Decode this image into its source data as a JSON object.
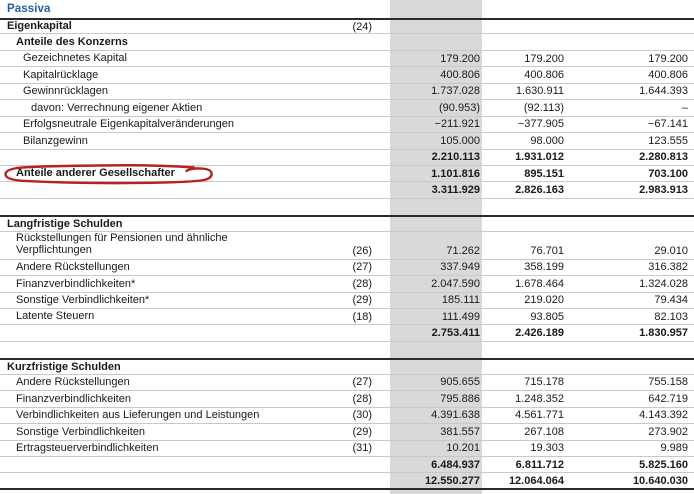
{
  "title": "Passiva",
  "colors": {
    "accent_blue": "#1f5fa6",
    "column_shade": "#d9d9d9",
    "annotation_red": "#b52222"
  },
  "annotation": {
    "type": "handwritten-red-circle",
    "target": "Anteile anderer Gesellschafter"
  },
  "rows": [
    {
      "type": "group",
      "label": "Eigenkapital",
      "note": "(24)",
      "v1": "",
      "v2": "",
      "v3": "",
      "bold": true,
      "indent": 0,
      "rule_top": "dark"
    },
    {
      "type": "group",
      "label": "Anteile des Konzerns",
      "note": "",
      "v1": "",
      "v2": "",
      "v3": "",
      "bold": true,
      "indent": 1
    },
    {
      "type": "item",
      "label": "Gezeichnetes Kapital",
      "note": "",
      "v1": "179.200",
      "v2": "179.200",
      "v3": "179.200",
      "bold": false,
      "indent": 2
    },
    {
      "type": "item",
      "label": "Kapitalrücklage",
      "note": "",
      "v1": "400.806",
      "v2": "400.806",
      "v3": "400.806",
      "bold": false,
      "indent": 2
    },
    {
      "type": "item",
      "label": "Gewinnrücklagen",
      "note": "",
      "v1": "1.737.028",
      "v2": "1.630.911",
      "v3": "1.644.393",
      "bold": false,
      "indent": 2
    },
    {
      "type": "item",
      "label": "davon: Verrechnung eigener Aktien",
      "note": "",
      "v1": "(90.953)",
      "v2": "(92.113)",
      "v3": "–",
      "bold": false,
      "indent": 3
    },
    {
      "type": "item",
      "label": "Erfolgsneutrale Eigenkapitalveränderungen",
      "note": "",
      "v1": "−211.921",
      "v2": "−377.905",
      "v3": "−67.141",
      "bold": false,
      "indent": 2
    },
    {
      "type": "item",
      "label": "Bilanzgewinn",
      "note": "",
      "v1": "105.000",
      "v2": "98.000",
      "v3": "123.555",
      "bold": false,
      "indent": 2
    },
    {
      "type": "subtotal",
      "label": "",
      "note": "",
      "v1": "2.210.113",
      "v2": "1.931.012",
      "v3": "2.280.813",
      "bold": true,
      "indent": 0
    },
    {
      "type": "item",
      "label": "Anteile anderer Gesellschafter",
      "note": "",
      "v1": "1.101.816",
      "v2": "895.151",
      "v3": "703.100",
      "bold": true,
      "indent": 1,
      "annotated": true
    },
    {
      "type": "subtotal",
      "label": "",
      "note": "",
      "v1": "3.311.929",
      "v2": "2.826.163",
      "v3": "2.983.913",
      "bold": true,
      "indent": 0
    },
    {
      "type": "spacer",
      "label": "",
      "note": "",
      "v1": "",
      "v2": "",
      "v3": "",
      "bold": false,
      "indent": 0,
      "rule_bottom": "none"
    },
    {
      "type": "group",
      "label": "Langfristige Schulden",
      "note": "",
      "v1": "",
      "v2": "",
      "v3": "",
      "bold": true,
      "indent": 0,
      "rule_top": "dark"
    },
    {
      "type": "item",
      "label": "Rückstellungen für Pensionen und ähnliche\nVerpflichtungen",
      "note": "(26)",
      "v1": "71.262",
      "v2": "76.701",
      "v3": "29.010",
      "bold": false,
      "indent": 1,
      "tall": true
    },
    {
      "type": "item",
      "label": "Andere Rückstellungen",
      "note": "(27)",
      "v1": "337.949",
      "v2": "358.199",
      "v3": "316.382",
      "bold": false,
      "indent": 1
    },
    {
      "type": "item",
      "label": "Finanzverbindlichkeiten*",
      "note": "(28)",
      "v1": "2.047.590",
      "v2": "1.678.464",
      "v3": "1.324.028",
      "bold": false,
      "indent": 1
    },
    {
      "type": "item",
      "label": "Sonstige Verbindlichkeiten*",
      "note": "(29)",
      "v1": "185.111",
      "v2": "219.020",
      "v3": "79.434",
      "bold": false,
      "indent": 1
    },
    {
      "type": "item",
      "label": "Latente Steuern",
      "note": "(18)",
      "v1": "111.499",
      "v2": "93.805",
      "v3": "82.103",
      "bold": false,
      "indent": 1
    },
    {
      "type": "subtotal",
      "label": "",
      "note": "",
      "v1": "2.753.411",
      "v2": "2.426.189",
      "v3": "1.830.957",
      "bold": true,
      "indent": 0
    },
    {
      "type": "spacer",
      "label": "",
      "note": "",
      "v1": "",
      "v2": "",
      "v3": "",
      "bold": false,
      "indent": 0,
      "rule_bottom": "none"
    },
    {
      "type": "group",
      "label": "Kurzfristige Schulden",
      "note": "",
      "v1": "",
      "v2": "",
      "v3": "",
      "bold": true,
      "indent": 0,
      "rule_top": "dark"
    },
    {
      "type": "item",
      "label": "Andere Rückstellungen",
      "note": "(27)",
      "v1": "905.655",
      "v2": "715.178",
      "v3": "755.158",
      "bold": false,
      "indent": 1
    },
    {
      "type": "item",
      "label": "Finanzverbindlichkeiten",
      "note": "(28)",
      "v1": "795.886",
      "v2": "1.248.352",
      "v3": "642.719",
      "bold": false,
      "indent": 1
    },
    {
      "type": "item",
      "label": "Verbindlichkeiten aus Lieferungen und Leistungen",
      "note": "(30)",
      "v1": "4.391.638",
      "v2": "4.561.771",
      "v3": "4.143.392",
      "bold": false,
      "indent": 1
    },
    {
      "type": "item",
      "label": "Sonstige Verbindlichkeiten",
      "note": "(29)",
      "v1": "381.557",
      "v2": "267.108",
      "v3": "273.902",
      "bold": false,
      "indent": 1
    },
    {
      "type": "item",
      "label": "Ertragsteuerverbindlichkeiten",
      "note": "(31)",
      "v1": "10.201",
      "v2": "19.303",
      "v3": "9.989",
      "bold": false,
      "indent": 1
    },
    {
      "type": "subtotal",
      "label": "",
      "note": "",
      "v1": "6.484.937",
      "v2": "6.811.712",
      "v3": "5.825.160",
      "bold": true,
      "indent": 0
    },
    {
      "type": "total",
      "label": "",
      "note": "",
      "v1": "12.550.277",
      "v2": "12.064.064",
      "v3": "10.640.030",
      "bold": true,
      "indent": 0,
      "rule_bottom": "dark"
    }
  ]
}
